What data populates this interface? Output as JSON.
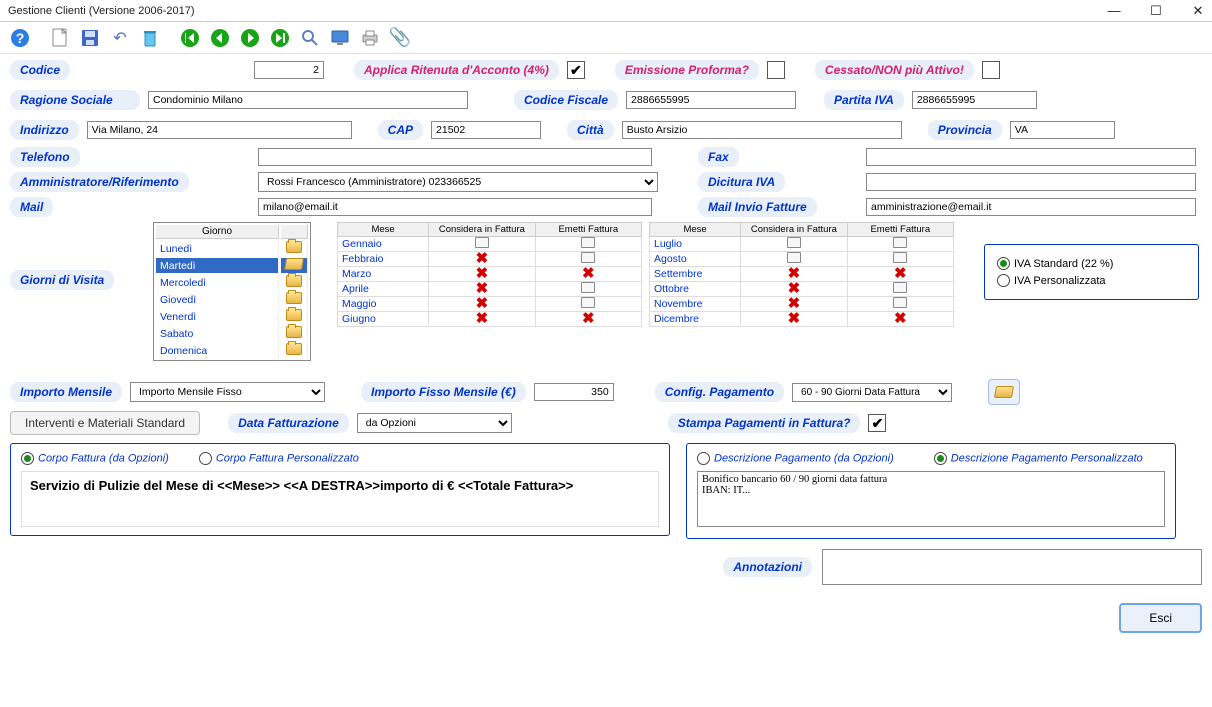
{
  "title": "Gestione Clienti (Versione 2006-2017)",
  "labels": {
    "codice": "Codice",
    "applica_ritenuta": "Applica Ritenuta d'Acconto (4%)",
    "emissione_proforma": "Emissione Proforma?",
    "cessato": "Cessato/NON più Attivo!",
    "ragione_sociale": "Ragione Sociale",
    "codice_fiscale": "Codice Fiscale",
    "partita_iva": "Partita IVA",
    "indirizzo": "Indirizzo",
    "cap": "CAP",
    "citta": "Città",
    "provincia": "Provincia",
    "telefono": "Telefono",
    "fax": "Fax",
    "amministratore": "Amministratore/Riferimento",
    "dicitura_iva": "Dicitura IVA",
    "mail": "Mail",
    "mail_fatture": "Mail Invio Fatture",
    "giorni_visita": "Giorni di Visita",
    "importo_mensile": "Importo Mensile",
    "importo_fisso": "Importo Fisso Mensile (€)",
    "config_pagamento": "Config. Pagamento",
    "interventi": "Interventi e Materiali Standard",
    "data_fatturazione": "Data Fatturazione",
    "stampa_pagamenti": "Stampa Pagamenti in Fattura?",
    "corpo_opzioni": "Corpo Fattura (da Opzioni)",
    "corpo_pers": "Corpo Fattura Personalizzato",
    "desc_pag_opz": "Descrizione Pagamento (da Opzioni)",
    "desc_pag_pers": "Descrizione Pagamento Personalizzato",
    "annotazioni": "Annotazioni",
    "iva_std": "IVA Standard (22 %)",
    "iva_pers": "IVA Personalizzata",
    "esci": "Esci"
  },
  "fields": {
    "codice": "2",
    "ragione_sociale": "Condominio Milano",
    "codice_fiscale": "2886655995",
    "partita_iva": "2886655995",
    "indirizzo": "Via Milano, 24",
    "cap": "21502",
    "citta": "Busto Arsizio",
    "provincia": "VA",
    "telefono": "",
    "fax": "",
    "amministratore": "Rossi Francesco (Amministratore) 023366525",
    "dicitura_iva": "",
    "mail": "milano@email.it",
    "mail_fatture": "amministrazione@email.it",
    "importo_mensile_sel": "Importo Mensile Fisso",
    "importo_fisso_val": "350",
    "config_pagamento_sel": "60 - 90 Giorni Data Fattura",
    "data_fatt_sel": "da Opzioni",
    "corpo_text": "Servizio di Pulizie del Mese di <<Mese>> <<A DESTRA>>importo di € <<Totale Fattura>>",
    "desc_pag_text": "Bonifico bancario 60 / 90 giorni data fattura\nIBAN: IT...",
    "annotazioni": ""
  },
  "checks": {
    "ritenuta": true,
    "proforma": false,
    "cessato": false,
    "stampa_pag": true,
    "corpo_opzioni": true,
    "corpo_pers": false,
    "desc_opz": false,
    "desc_pers": true,
    "iva_std": true,
    "iva_pers": false
  },
  "days_header": "Giorno",
  "days": [
    {
      "n": "Lunedì",
      "sel": false
    },
    {
      "n": "Martedì",
      "sel": true
    },
    {
      "n": "Mercoledì",
      "sel": false
    },
    {
      "n": "Giovedì",
      "sel": false
    },
    {
      "n": "Venerdì",
      "sel": false
    },
    {
      "n": "Sabato",
      "sel": false
    },
    {
      "n": "Domenica",
      "sel": false
    }
  ],
  "month_headers": {
    "mese": "Mese",
    "cons": "Considera in Fattura",
    "emetti": "Emetti Fattura"
  },
  "months1": [
    {
      "m": "Gennaio",
      "c": false,
      "e": false
    },
    {
      "m": "Febbraio",
      "c": true,
      "e": false
    },
    {
      "m": "Marzo",
      "c": true,
      "e": true
    },
    {
      "m": "Aprile",
      "c": true,
      "e": false
    },
    {
      "m": "Maggio",
      "c": true,
      "e": false
    },
    {
      "m": "Giugno",
      "c": true,
      "e": true
    }
  ],
  "months2": [
    {
      "m": "Luglio",
      "c": false,
      "e": false
    },
    {
      "m": "Agosto",
      "c": false,
      "e": false
    },
    {
      "m": "Settembre",
      "c": true,
      "e": true
    },
    {
      "m": "Ottobre",
      "c": true,
      "e": false
    },
    {
      "m": "Novembre",
      "c": true,
      "e": false
    },
    {
      "m": "Dicembre",
      "c": true,
      "e": true
    }
  ]
}
